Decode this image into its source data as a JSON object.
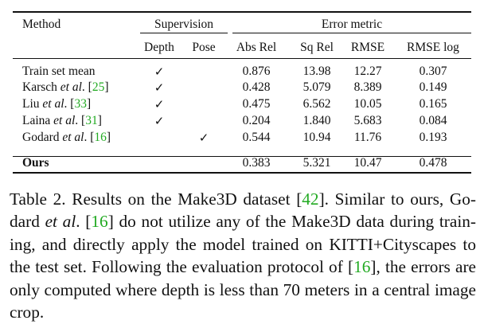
{
  "table": {
    "headers": {
      "method": "Method",
      "supervision": "Supervision",
      "error_metric": "Error metric",
      "depth": "Depth",
      "pose": "Pose",
      "abs_rel": "Abs Rel",
      "sq_rel": "Sq Rel",
      "rmse": "RMSE",
      "rmse_log": "RMSE log"
    },
    "check_symbol": "✓",
    "rows": [
      {
        "method": "Train set mean",
        "cite": "",
        "depth": true,
        "pose": false,
        "abs_rel": "0.876",
        "sq_rel": "13.98",
        "rmse": "12.27",
        "rmse_log": "0.307"
      },
      {
        "method_pre": "Karsch ",
        "method_etal": "et al",
        "method_post": ". [",
        "cite": "25",
        "method_end": "]",
        "depth": true,
        "pose": false,
        "abs_rel": "0.428",
        "sq_rel": "5.079",
        "rmse": "8.389",
        "rmse_log": "0.149"
      },
      {
        "method_pre": "Liu ",
        "method_etal": "et al",
        "method_post": ". [",
        "cite": "33",
        "method_end": "]",
        "depth": true,
        "pose": false,
        "abs_rel": "0.475",
        "sq_rel": "6.562",
        "rmse": "10.05",
        "rmse_log": "0.165"
      },
      {
        "method_pre": "Laina ",
        "method_etal": "et al",
        "method_post": ". [",
        "cite": "31",
        "method_end": "]",
        "depth": true,
        "pose": false,
        "abs_rel": "0.204",
        "sq_rel": "1.840",
        "rmse": "5.683",
        "rmse_log": "0.084"
      },
      {
        "method_pre": "Godard ",
        "method_etal": "et al",
        "method_post": ". [",
        "cite": "16",
        "method_end": "]",
        "depth": false,
        "pose": true,
        "abs_rel": "0.544",
        "sq_rel": "10.94",
        "rmse": "11.76",
        "rmse_log": "0.193"
      }
    ],
    "ours": {
      "method": "Ours",
      "abs_rel": "0.383",
      "sq_rel": "5.321",
      "rmse": "10.47",
      "rmse_log": "0.478"
    }
  },
  "caption": {
    "p1": "Table 2. Results on the Make3D dataset [",
    "c1": "42",
    "p2": "]. Similar to ours, Go-",
    "p3": "dard ",
    "etal": "et al",
    "p4": ". [",
    "c2": "16",
    "p5": "] do not utilize any of the Make3D data during train-",
    "p6": "ing, and directly apply the model trained on KITTI+Cityscapes to",
    "p7": "the test set. Following the evaluation protocol of [",
    "c3": "16",
    "p8": "], the errors",
    "p9": "are only computed where depth is less than 70 meters in a central",
    "p10": "image crop."
  }
}
